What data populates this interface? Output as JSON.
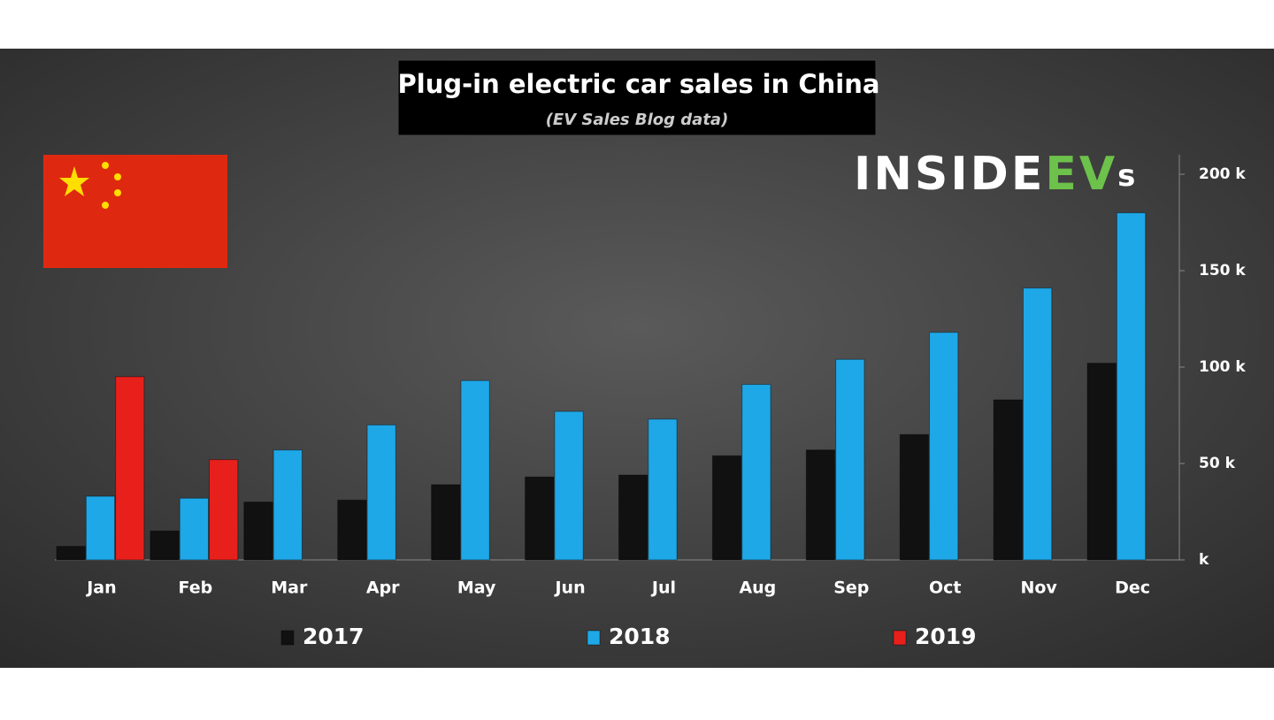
{
  "chart_data": {
    "type": "bar",
    "title": "Plug-in electric car sales in China",
    "subtitle": "(EV Sales Blog data)",
    "logo": [
      "INSIDE",
      "EV",
      "s"
    ],
    "categories": [
      "Jan",
      "Feb",
      "Mar",
      "Apr",
      "May",
      "Jun",
      "Jul",
      "Aug",
      "Sep",
      "Oct",
      "Nov",
      "Dec"
    ],
    "series": [
      {
        "name": "2017",
        "color": "#111111",
        "values": [
          7,
          15,
          30,
          31,
          39,
          43,
          44,
          54,
          57,
          65,
          83,
          102
        ]
      },
      {
        "name": "2018",
        "color": "#1ea8e8",
        "values": [
          33,
          32,
          57,
          70,
          93,
          77,
          73,
          91,
          104,
          118,
          141,
          180
        ]
      },
      {
        "name": "2019",
        "color": "#e8201c",
        "values": [
          95,
          52,
          null,
          null,
          null,
          null,
          null,
          null,
          null,
          null,
          null,
          null
        ]
      }
    ],
    "ylim": [
      0,
      200
    ],
    "yticks": [
      {
        "value": 0,
        "label": "k"
      },
      {
        "value": 50,
        "label": "50 k"
      },
      {
        "value": 100,
        "label": "100 k"
      },
      {
        "value": 150,
        "label": "150 k"
      },
      {
        "value": 200,
        "label": "200 k"
      }
    ],
    "y_axis_side": "right",
    "grid": false,
    "legend": "bottom"
  }
}
